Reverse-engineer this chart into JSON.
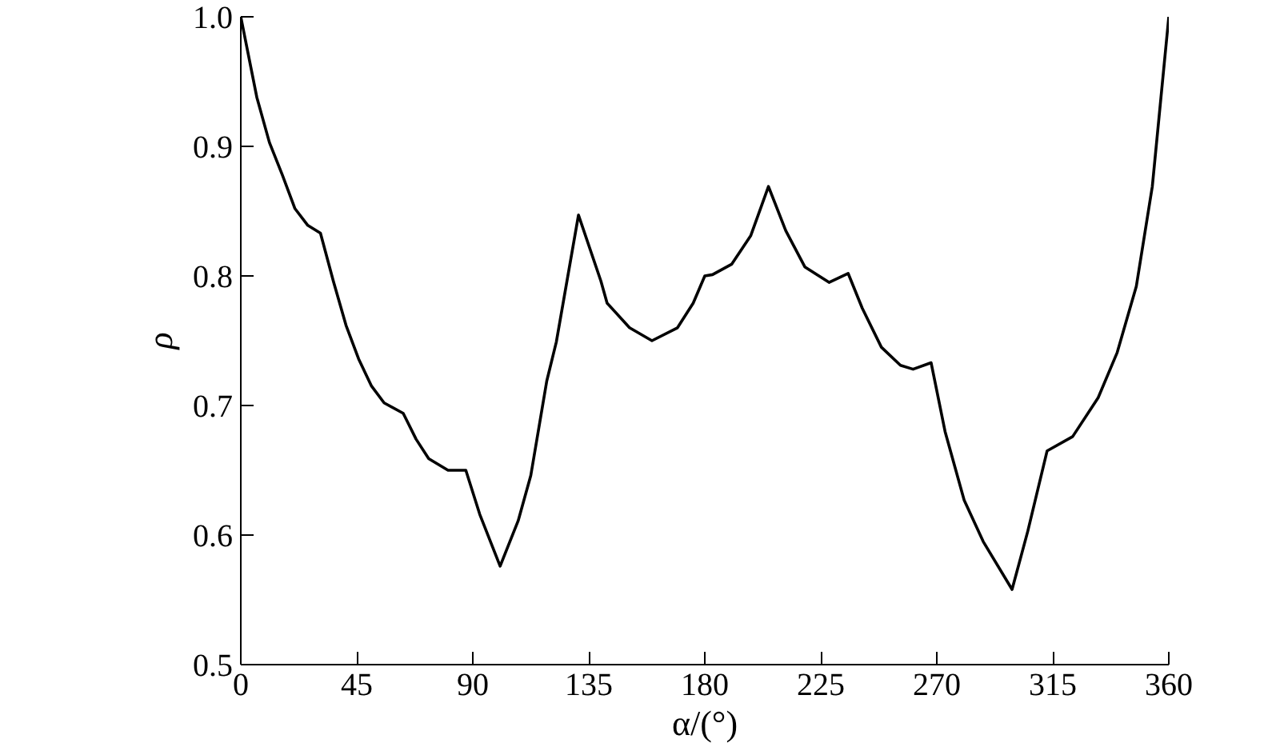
{
  "chart_data": {
    "type": "line",
    "xlabel": "α/(°)",
    "ylabel": "ρ",
    "x": [
      0,
      6.2,
      11.1,
      16.1,
      21,
      26,
      30.9,
      35.9,
      40.8,
      45.7,
      50.7,
      55.6,
      63,
      68,
      72.9,
      80.4,
      87.3,
      92.7,
      100.6,
      107.6,
      112.5,
      118.7,
      122.4,
      131,
      139.7,
      142.1,
      150.8,
      159.5,
      169.4,
      175.5,
      180,
      183,
      190.4,
      197.8,
      204.7,
      211.4,
      218.8,
      228.2,
      235.6,
      241.1,
      248.5,
      255.9,
      260.8,
      267.8,
      273.2,
      280.6,
      288,
      299.2,
      305.3,
      312.8,
      322.7,
      332.6,
      340,
      347.4,
      353.6,
      360
    ],
    "series": [
      {
        "color": "#000000",
        "values": [
          1.0,
          0.938,
          0.903,
          0.878,
          0.852,
          0.839,
          0.833,
          0.796,
          0.762,
          0.736,
          0.715,
          0.702,
          0.694,
          0.674,
          0.659,
          0.65,
          0.65,
          0.616,
          0.576,
          0.611,
          0.646,
          0.719,
          0.749,
          0.847,
          0.796,
          0.779,
          0.76,
          0.75,
          0.76,
          0.779,
          0.8,
          0.801,
          0.809,
          0.831,
          0.869,
          0.835,
          0.807,
          0.795,
          0.802,
          0.775,
          0.745,
          0.731,
          0.728,
          0.733,
          0.68,
          0.627,
          0.595,
          0.558,
          0.603,
          0.665,
          0.676,
          0.706,
          0.741,
          0.792,
          0.869,
          1.0
        ]
      }
    ],
    "xlim": [
      0,
      360
    ],
    "xticks": [
      0,
      45,
      90,
      135,
      180,
      225,
      270,
      315,
      360
    ],
    "ylim": [
      0.5,
      1.0
    ],
    "yticks": [
      {
        "value": 0.5,
        "label": "0.5"
      },
      {
        "value": 0.6,
        "label": "0.6"
      },
      {
        "value": 0.7,
        "label": "0.7"
      },
      {
        "value": 0.8,
        "label": "0.8"
      },
      {
        "value": 0.9,
        "label": "0.9"
      },
      {
        "value": 1.0,
        "label": "1.0"
      }
    ],
    "grid": false,
    "marker": "none",
    "line_style": "solid"
  }
}
